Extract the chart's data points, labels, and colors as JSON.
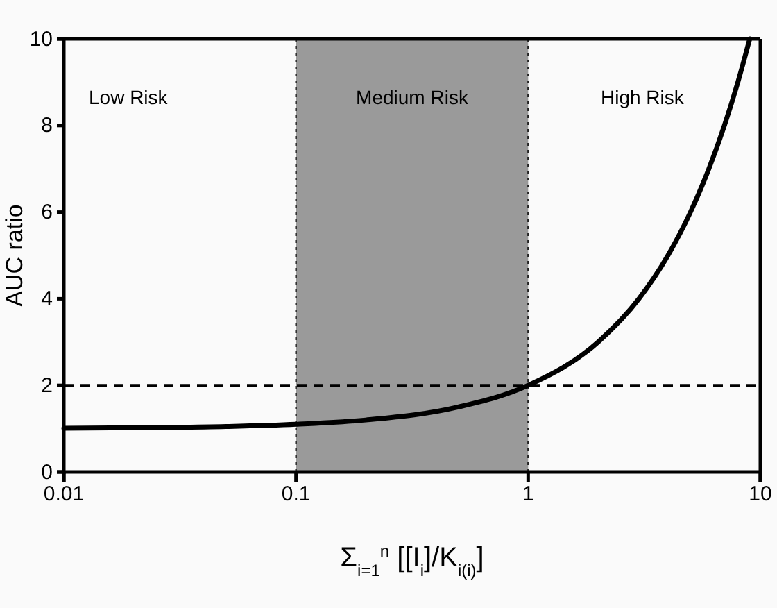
{
  "chart_data": {
    "type": "line",
    "xlabel": "Σ$_{i=1}$$^{n}$ [[I$_{i}$]/K$_{i(i)}$]",
    "ylabel": "AUC ratio",
    "log": "x",
    "xlim": [
      0.01,
      10
    ],
    "xticks": [
      0.01,
      0.1,
      1,
      10
    ],
    "ylim": [
      0,
      10
    ],
    "yticks": [
      0,
      2,
      4,
      6,
      8,
      10
    ],
    "series": [
      {
        "color": "#000000",
        "x": [
          0.01,
          0.02,
          0.05,
          0.1,
          0.2,
          0.5,
          1,
          2,
          3,
          4,
          5,
          6,
          7,
          8,
          9
        ],
        "values": [
          1.01,
          1.02,
          1.05,
          1.1,
          1.2,
          1.5,
          2,
          3,
          4,
          5,
          6,
          7,
          8,
          9,
          10
        ]
      }
    ],
    "bands": [
      {
        "axis": "x",
        "from": 0.1,
        "to": 1,
        "label": "Medium Risk",
        "color": "#9a9a9a"
      }
    ],
    "annotations": [
      "Low Risk",
      "High Risk"
    ],
    "ref_lines": [
      {
        "axis": "y",
        "value": 2,
        "line_style": "dashed"
      },
      {
        "axis": "x",
        "value": 0.1,
        "line_style": "dotted"
      },
      {
        "axis": "x",
        "value": 1,
        "line_style": "dotted"
      }
    ],
    "marker": "none",
    "line_style": "solid"
  }
}
